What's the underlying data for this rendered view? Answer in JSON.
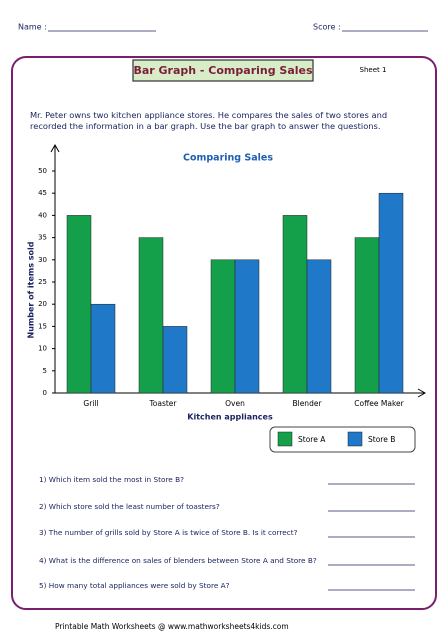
{
  "header": {
    "name_label": "Name :",
    "score_label": "Score :"
  },
  "title": "Bar Graph - Comparing Sales",
  "sheet": "Sheet 1",
  "intro": "Mr. Peter owns two kitchen appliance stores. He compares the sales of two stores and recorded the information in a bar graph. Use the bar graph to answer the questions.",
  "chart_data": {
    "type": "bar",
    "title": "Comparing Sales",
    "x_label": "Kitchen appliances",
    "y_label": "Number of items sold",
    "categories": [
      "Grill",
      "Toaster",
      "Oven",
      "Blender",
      "Coffee Maker"
    ],
    "series": [
      {
        "name": "Store A",
        "color": "#14a04a",
        "values": [
          40,
          35,
          30,
          40,
          35
        ]
      },
      {
        "name": "Store B",
        "color": "#1f78c8",
        "values": [
          20,
          15,
          30,
          30,
          45
        ]
      }
    ],
    "ylim": [
      0,
      50
    ],
    "yticks": [
      0,
      5,
      10,
      15,
      20,
      25,
      30,
      35,
      40,
      45,
      50
    ]
  },
  "questions": [
    "1) Which item sold the most in Store B?",
    "2) Which store sold the least number of toasters?",
    "3) The number of grills sold by Store A is twice of Store B. Is it correct?",
    "4) What is the difference on sales of blenders between Store A and Store B?",
    "5) How many total appliances were sold by Store A?"
  ],
  "footer": "Printable Math Worksheets @ www.mathworksheets4kids.com"
}
